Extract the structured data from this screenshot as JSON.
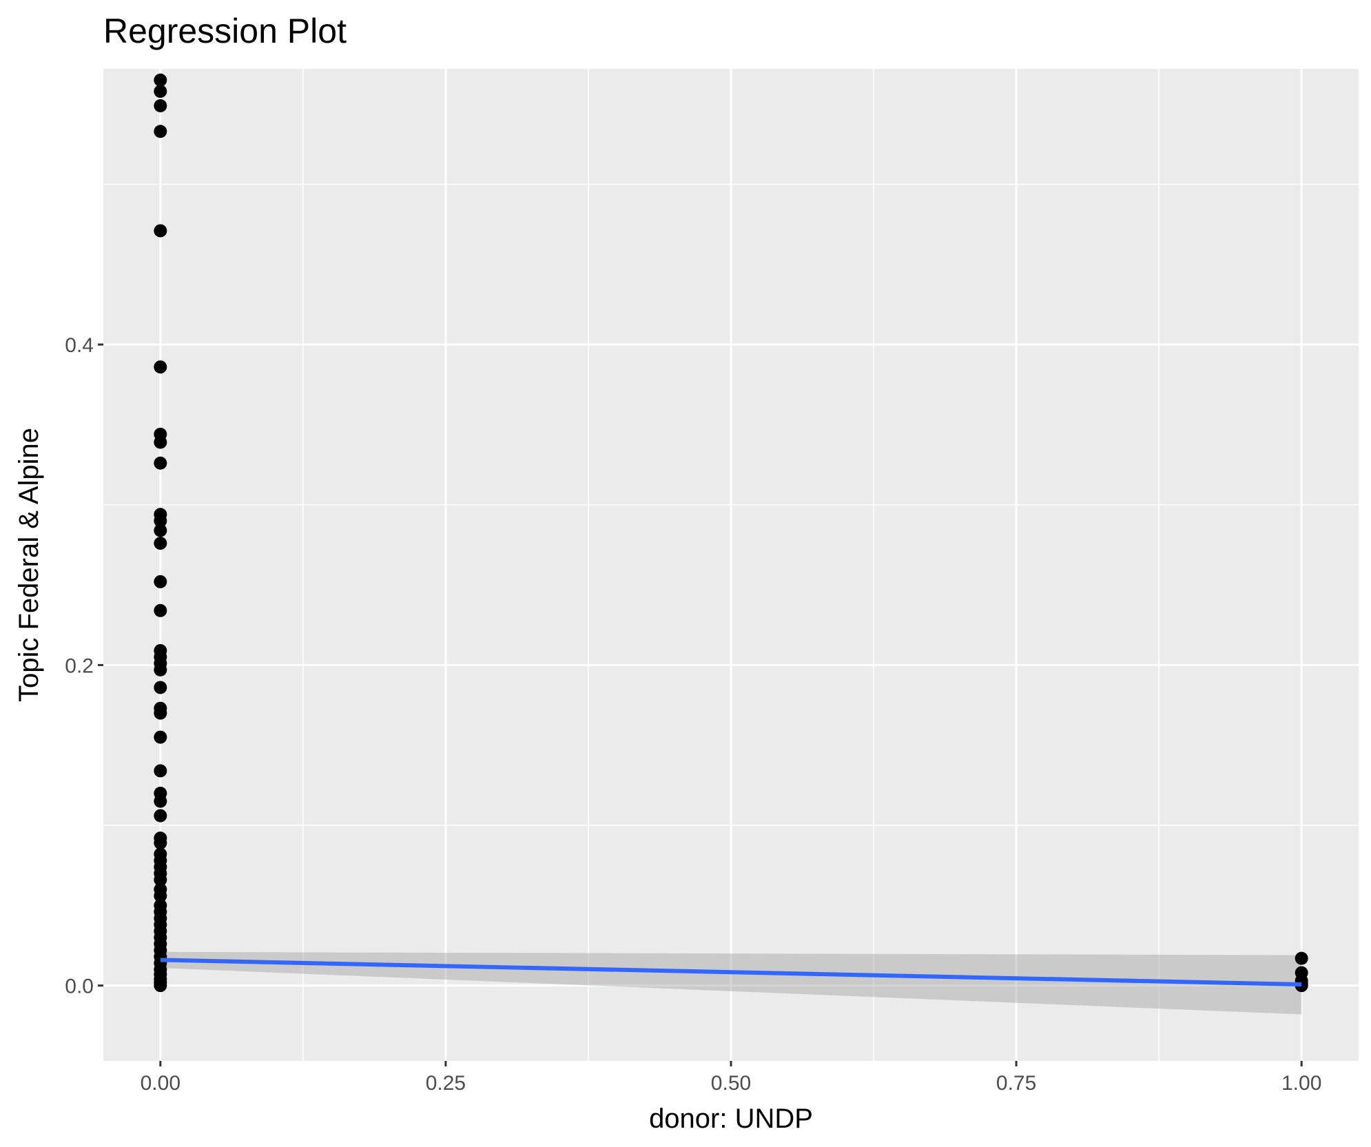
{
  "chart_data": {
    "type": "scatter",
    "title": "Regression Plot",
    "xlabel": "donor: UNDP",
    "ylabel": "Topic Federal & Alpine",
    "xlim": [
      -0.05,
      1.05
    ],
    "ylim": [
      -0.047,
      0.572
    ],
    "x_ticks": [
      0.0,
      0.25,
      0.5,
      0.75,
      1.0
    ],
    "x_tick_labels": [
      "0.00",
      "0.25",
      "0.50",
      "0.75",
      "1.00"
    ],
    "y_ticks": [
      0.0,
      0.2,
      0.4
    ],
    "y_tick_labels": [
      "0.0",
      "0.2",
      "0.4"
    ],
    "x_minor_ticks": [
      0.125,
      0.375,
      0.625,
      0.875
    ],
    "y_minor_ticks": [
      0.1,
      0.3,
      0.5
    ],
    "grid": true,
    "legend": "none",
    "panel_background": "#ebebeb",
    "point_color": "#000000",
    "line_color": "#3366ff",
    "ribbon_color": "#999999",
    "points": [
      {
        "x": 0,
        "y": 0.565
      },
      {
        "x": 0,
        "y": 0.558
      },
      {
        "x": 0,
        "y": 0.549
      },
      {
        "x": 0,
        "y": 0.533
      },
      {
        "x": 0,
        "y": 0.471
      },
      {
        "x": 0,
        "y": 0.386
      },
      {
        "x": 0,
        "y": 0.344
      },
      {
        "x": 0,
        "y": 0.339
      },
      {
        "x": 0,
        "y": 0.326
      },
      {
        "x": 0,
        "y": 0.294
      },
      {
        "x": 0,
        "y": 0.29
      },
      {
        "x": 0,
        "y": 0.284
      },
      {
        "x": 0,
        "y": 0.276
      },
      {
        "x": 0,
        "y": 0.252
      },
      {
        "x": 0,
        "y": 0.234
      },
      {
        "x": 0,
        "y": 0.209
      },
      {
        "x": 0,
        "y": 0.205
      },
      {
        "x": 0,
        "y": 0.201
      },
      {
        "x": 0,
        "y": 0.197
      },
      {
        "x": 0,
        "y": 0.186
      },
      {
        "x": 0,
        "y": 0.173
      },
      {
        "x": 0,
        "y": 0.17
      },
      {
        "x": 0,
        "y": 0.155
      },
      {
        "x": 0,
        "y": 0.134
      },
      {
        "x": 0,
        "y": 0.12
      },
      {
        "x": 0,
        "y": 0.115
      },
      {
        "x": 0,
        "y": 0.106
      },
      {
        "x": 0,
        "y": 0.092
      },
      {
        "x": 0,
        "y": 0.089
      },
      {
        "x": 0,
        "y": 0.082
      },
      {
        "x": 0,
        "y": 0.078
      },
      {
        "x": 0,
        "y": 0.074
      },
      {
        "x": 0,
        "y": 0.07
      },
      {
        "x": 0,
        "y": 0.066
      },
      {
        "x": 0,
        "y": 0.06
      },
      {
        "x": 0,
        "y": 0.056
      },
      {
        "x": 0,
        "y": 0.05
      },
      {
        "x": 0,
        "y": 0.046
      },
      {
        "x": 0,
        "y": 0.042
      },
      {
        "x": 0,
        "y": 0.038
      },
      {
        "x": 0,
        "y": 0.034
      },
      {
        "x": 0,
        "y": 0.03
      },
      {
        "x": 0,
        "y": 0.026
      },
      {
        "x": 0,
        "y": 0.022
      },
      {
        "x": 0,
        "y": 0.018
      },
      {
        "x": 0,
        "y": 0.014
      },
      {
        "x": 0,
        "y": 0.01
      },
      {
        "x": 0,
        "y": 0.007
      },
      {
        "x": 0,
        "y": 0.004
      },
      {
        "x": 0,
        "y": 0.002
      },
      {
        "x": 0,
        "y": 0.0
      },
      {
        "x": 1,
        "y": 0.017
      },
      {
        "x": 1,
        "y": 0.008
      },
      {
        "x": 1,
        "y": 0.003
      },
      {
        "x": 1,
        "y": 0.001
      },
      {
        "x": 1,
        "y": 0.0
      }
    ],
    "regression": {
      "x": [
        0,
        1
      ],
      "y": [
        0.016,
        0.0007
      ],
      "ci_lower": [
        0.011,
        -0.018
      ],
      "ci_upper": [
        0.021,
        0.019
      ]
    }
  }
}
